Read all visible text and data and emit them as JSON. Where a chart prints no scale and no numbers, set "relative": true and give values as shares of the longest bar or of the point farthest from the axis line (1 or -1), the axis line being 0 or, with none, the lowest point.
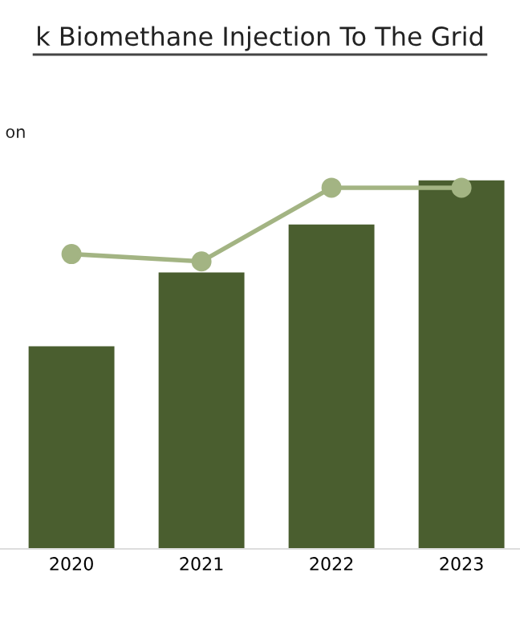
{
  "chart_data": {
    "type": "bar",
    "title": "k Biomethane Injection To The Grid",
    "ylabel": "on",
    "relative": true,
    "categories": [
      "2020",
      "2021",
      "2022",
      "2023"
    ],
    "series": [
      {
        "color": "#4a5e2f",
        "values": [
          0.55,
          0.75,
          0.88,
          1.0
        ]
      },
      {
        "type": "line",
        "color": "#a3b483",
        "values": [
          0.8,
          0.78,
          0.98,
          0.98
        ]
      }
    ],
    "marker": "circle",
    "line_style": "solid",
    "legend": false
  }
}
